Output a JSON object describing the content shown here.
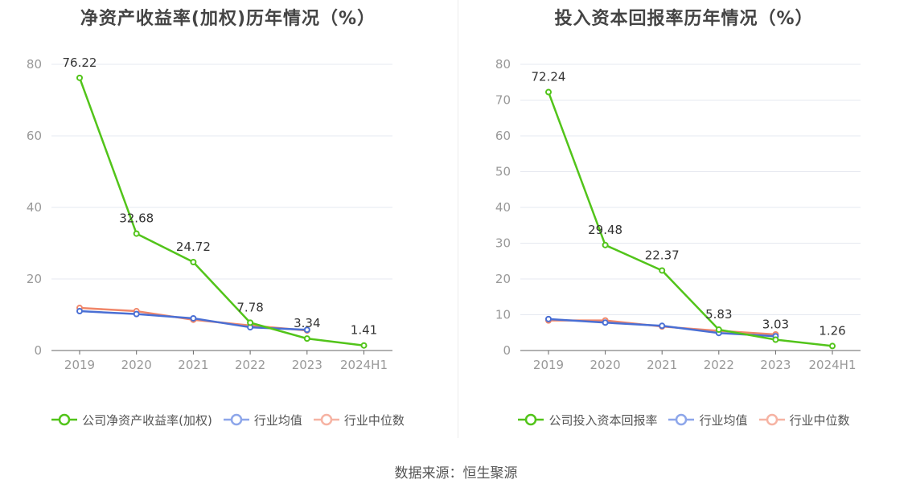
{
  "chart_data": [
    {
      "type": "line",
      "title": "净资产收益率(加权)历年情况（%）",
      "categories": [
        "2019",
        "2020",
        "2021",
        "2022",
        "2023",
        "2024H1"
      ],
      "ylim": [
        0,
        80
      ],
      "yticks": [
        0,
        20,
        40,
        60,
        80
      ],
      "grid": true,
      "legend_position": "bottom",
      "series": [
        {
          "name": "公司净资产收益率(加权)",
          "color": "#52c41a",
          "values": [
            76.22,
            32.68,
            24.72,
            7.78,
            3.34,
            1.41
          ],
          "labels": [
            "76.22",
            "32.68",
            "24.72",
            "7.78",
            "3.34",
            "1.41"
          ]
        },
        {
          "name": "行业均值",
          "color": "#4a6fd4",
          "legend_color": "#8da6ea",
          "values": [
            11.0,
            10.2,
            9.0,
            6.5,
            5.8,
            null
          ]
        },
        {
          "name": "行业中位数",
          "color": "#f0876a",
          "legend_color": "#f6b3a3",
          "values": [
            11.9,
            11.0,
            8.6,
            7.0,
            5.6,
            null
          ]
        }
      ]
    },
    {
      "type": "line",
      "title": "投入资本回报率历年情况（%）",
      "categories": [
        "2019",
        "2020",
        "2021",
        "2022",
        "2023",
        "2024H1"
      ],
      "ylim": [
        0,
        80
      ],
      "yticks": [
        0,
        10,
        20,
        30,
        40,
        50,
        60,
        70,
        80
      ],
      "grid": true,
      "legend_position": "bottom",
      "series": [
        {
          "name": "公司投入资本回报率",
          "color": "#52c41a",
          "values": [
            72.24,
            29.48,
            22.37,
            5.83,
            3.03,
            1.26
          ],
          "labels": [
            "72.24",
            "29.48",
            "22.37",
            "5.83",
            "3.03",
            "1.26"
          ]
        },
        {
          "name": "行业均值",
          "color": "#4a6fd4",
          "legend_color": "#8da6ea",
          "values": [
            8.8,
            7.8,
            6.9,
            4.9,
            4.0,
            null
          ]
        },
        {
          "name": "行业中位数",
          "color": "#f0876a",
          "legend_color": "#f6b3a3",
          "values": [
            8.4,
            8.4,
            6.7,
            5.5,
            4.5,
            null
          ]
        }
      ]
    }
  ],
  "source": "数据来源：恒生聚源"
}
